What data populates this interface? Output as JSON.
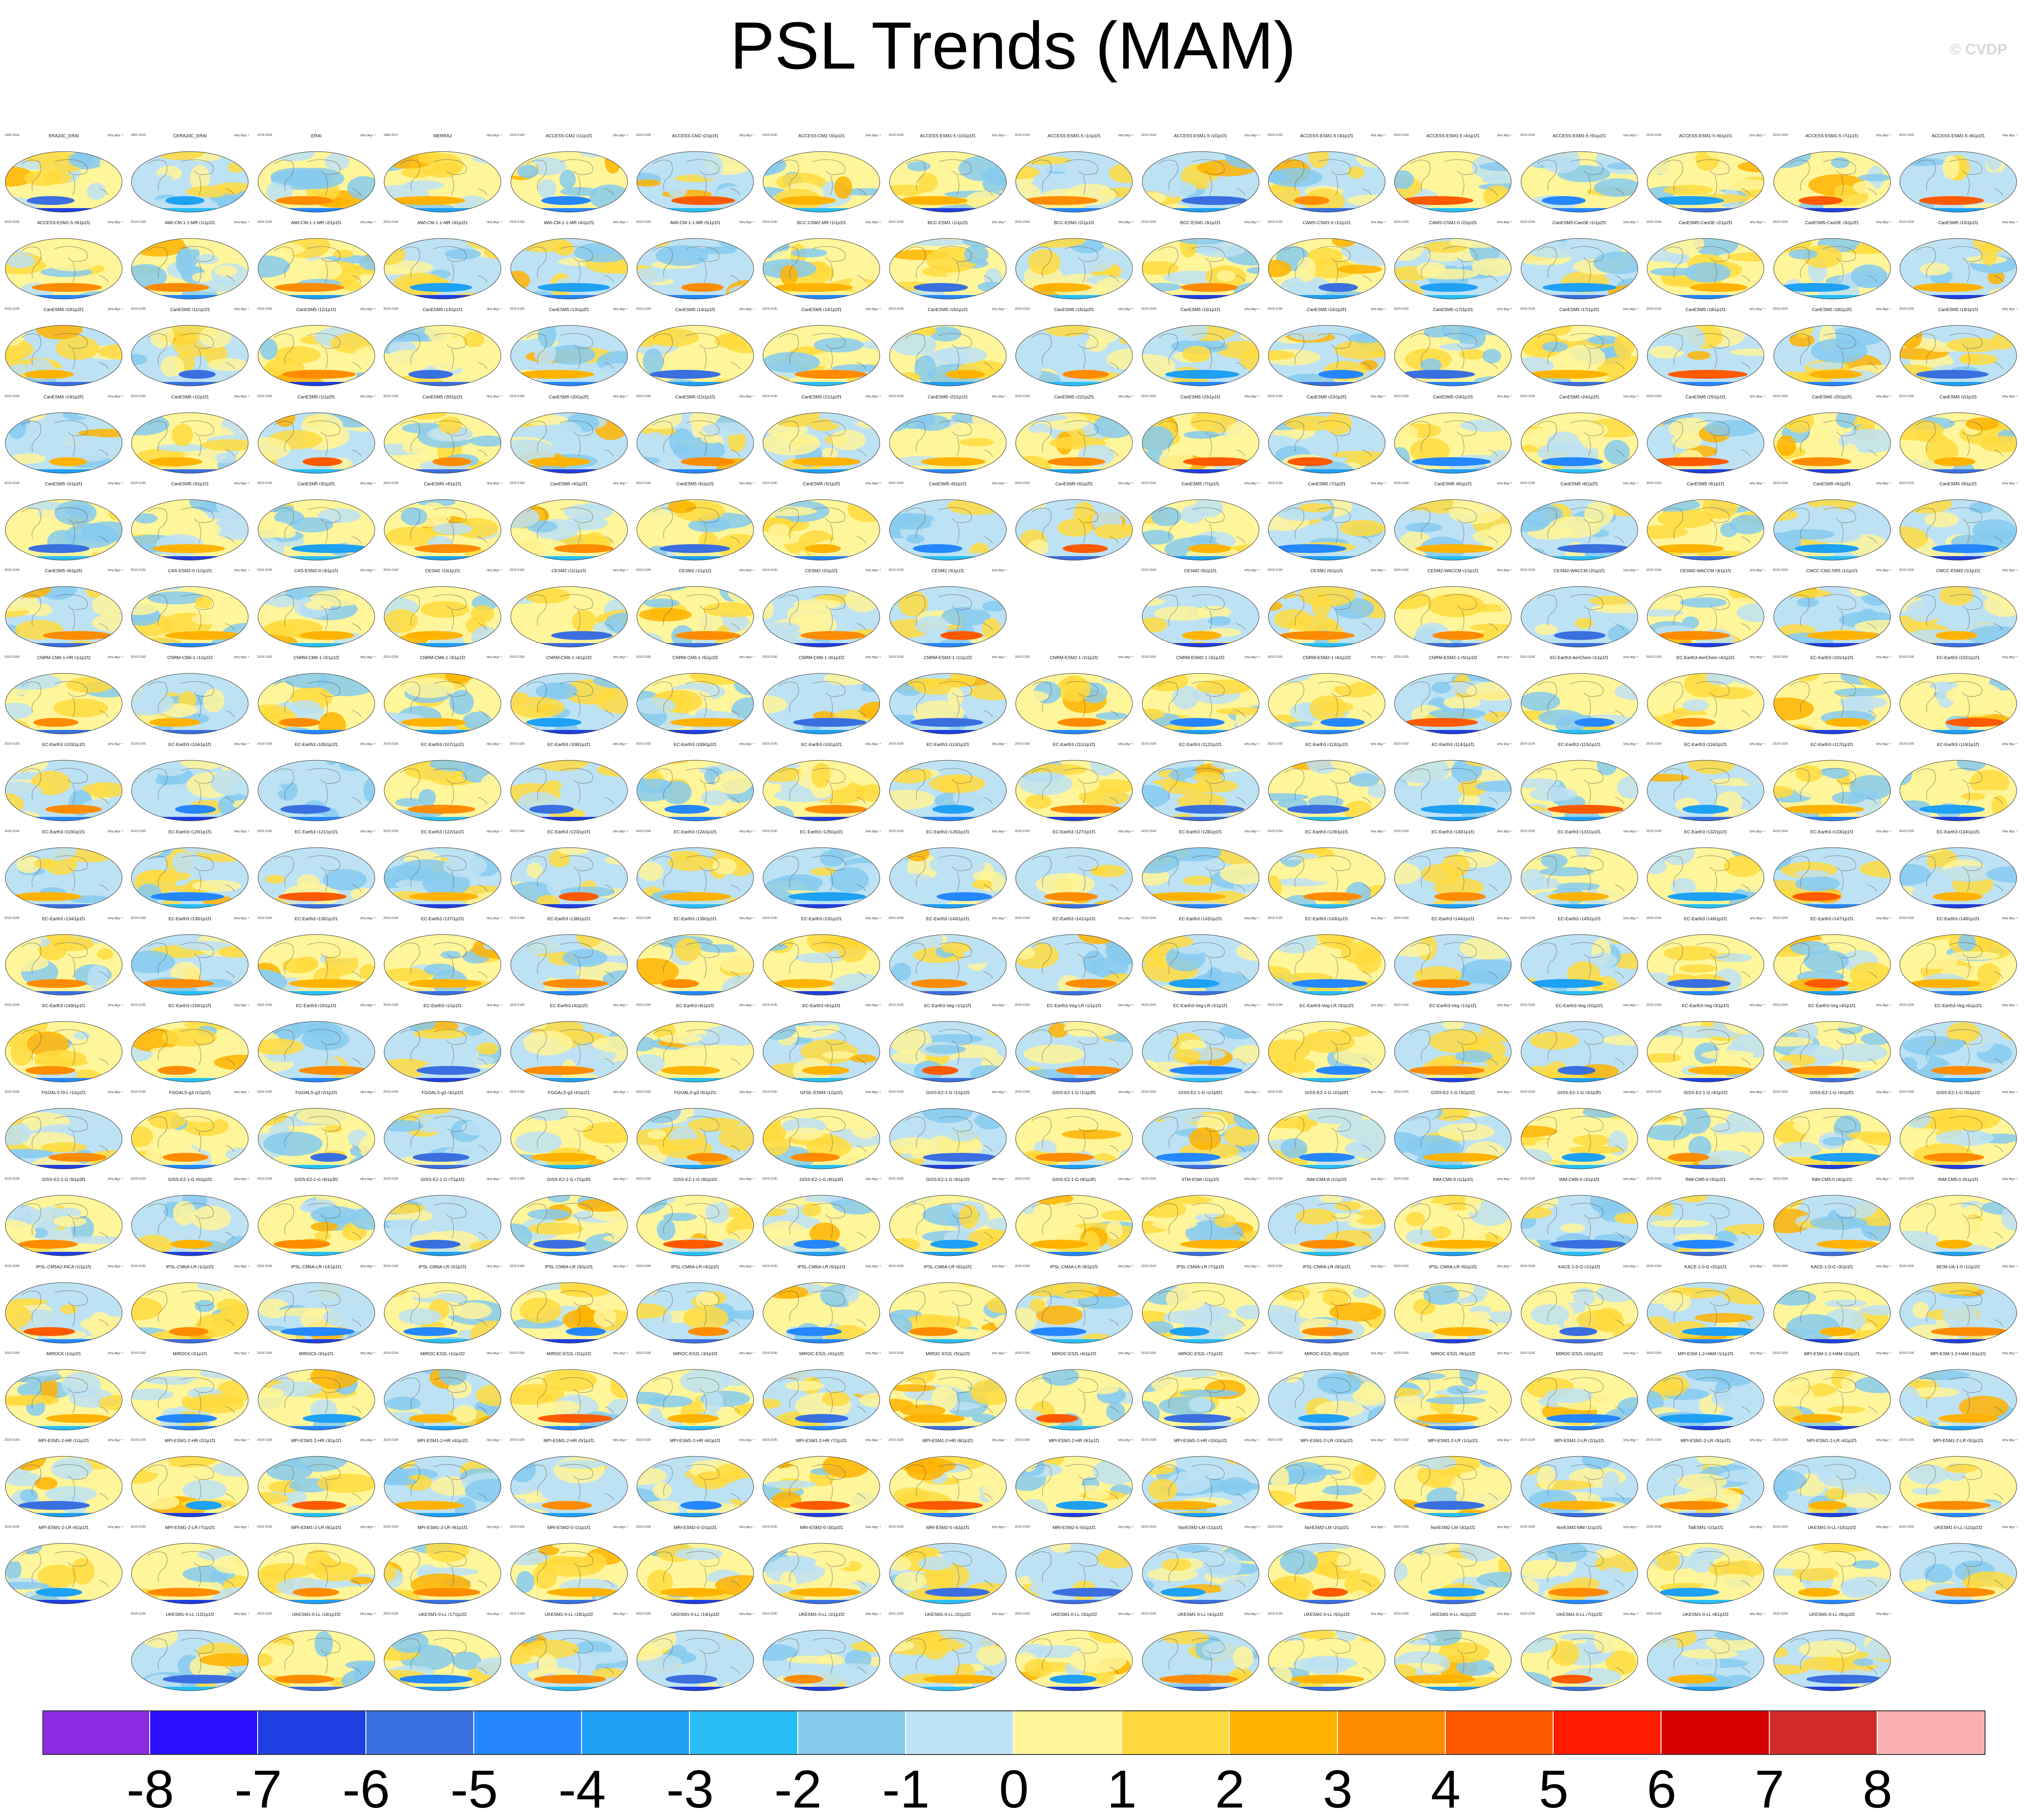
{
  "page": {
    "title": "PSL Trends (MAM)",
    "watermark": "© CVDP"
  },
  "panel_common": {
    "units_label": "hPa 96yr⁻¹",
    "default_years": "2015-2100"
  },
  "panels": [
    {
      "title": "ERA20C_ERAI",
      "years": "1900-2018"
    },
    {
      "title": "CERA20C_ERAI",
      "years": "1901-2018"
    },
    {
      "title": "ERAI",
      "years": "1979-2018"
    },
    {
      "title": "MERRA2",
      "years": "1980-2017"
    },
    {
      "title": "ACCESS-CM2 r1i1p1f1"
    },
    {
      "title": "ACCESS-CM2 r2i1p1f1"
    },
    {
      "title": "ACCESS-CM2 r3i1p1f1"
    },
    {
      "title": "ACCESS-ESM1-5 r10i1p1f1"
    },
    {
      "title": "ACCESS-ESM1-5 r1i1p1f1"
    },
    {
      "title": "ACCESS-ESM1-5 r2i1p1f1"
    },
    {
      "title": "ACCESS-ESM1-5 r3i1p1f1"
    },
    {
      "title": "ACCESS-ESM1-5 r4i1p1f1"
    },
    {
      "title": "ACCESS-ESM1-5 r5i1p1f1"
    },
    {
      "title": "ACCESS-ESM1-5 r6i1p1f1"
    },
    {
      "title": "ACCESS-ESM1-5 r7i1p1f1"
    },
    {
      "title": "ACCESS-ESM1-5 r8i1p1f1"
    },
    {
      "title": "ACCESS-ESM1-5 r9i1p1f1"
    },
    {
      "title": "AWI-CM-1-1-MR r1i1p1f1"
    },
    {
      "title": "AWI-CM-1-1-MR r2i1p1f1"
    },
    {
      "title": "AWI-CM-1-1-MR r3i1p1f1"
    },
    {
      "title": "AWI-CM-1-1-MR r4i1p1f1"
    },
    {
      "title": "AWI-CM-1-1-MR r5i1p1f1"
    },
    {
      "title": "BCC-CSM2-MR r1i1p1f1"
    },
    {
      "title": "BCC-ESM1 r1i1p1f1"
    },
    {
      "title": "BCC-ESM1 r2i1p1f1"
    },
    {
      "title": "BCC-ESM1 r3i1p1f1"
    },
    {
      "title": "CAMS-CSM1-0 r1i1p1f1"
    },
    {
      "title": "CAMS-CSM1-0 r2i1p1f1"
    },
    {
      "title": "CanESM5-CanOE r1i1p2f1"
    },
    {
      "title": "CanESM5-CanOE r2i1p2f1"
    },
    {
      "title": "CanESM5-CanOE r3i1p2f1"
    },
    {
      "title": "CanESM5 r10i1p1f1"
    },
    {
      "title": "CanESM5 r10i1p2f1"
    },
    {
      "title": "CanESM5 r11i1p1f1"
    },
    {
      "title": "CanESM5 r12i1p1f1"
    },
    {
      "title": "CanESM5 r13i1p1f1"
    },
    {
      "title": "CanESM5 r13i1p2f1"
    },
    {
      "title": "CanESM5 r14i1p1f1"
    },
    {
      "title": "CanESM5 r14i1p2f1"
    },
    {
      "title": "CanESM5 r15i1p1f1"
    },
    {
      "title": "CanESM5 r15i1p2f1"
    },
    {
      "title": "CanESM5 r16i1p1f1"
    },
    {
      "title": "CanESM5 r16i1p2f1"
    },
    {
      "title": "CanESM5 r17i1p1f1"
    },
    {
      "title": "CanESM5 r17i1p2f1"
    },
    {
      "title": "CanESM5 r18i1p1f1"
    },
    {
      "title": "CanESM5 r18i1p2f1"
    },
    {
      "title": "CanESM5 r19i1p1f1"
    },
    {
      "title": "CanESM5 r19i1p2f1"
    },
    {
      "title": "CanESM5 r1i1p1f1"
    },
    {
      "title": "CanESM5 r1i1p2f1"
    },
    {
      "title": "CanESM5 r20i1p1f1"
    },
    {
      "title": "CanESM5 r20i1p2f1"
    },
    {
      "title": "CanESM5 r21i1p1f1"
    },
    {
      "title": "CanESM5 r21i1p2f1"
    },
    {
      "title": "CanESM5 r22i1p1f1"
    },
    {
      "title": "CanESM5 r22i1p2f1"
    },
    {
      "title": "CanESM5 r23i1p1f1"
    },
    {
      "title": "CanESM5 r23i1p2f1"
    },
    {
      "title": "CanESM5 r24i1p1f1"
    },
    {
      "title": "CanESM5 r24i1p2f1"
    },
    {
      "title": "CanESM5 r25i1p1f1"
    },
    {
      "title": "CanESM5 r25i1p2f1"
    },
    {
      "title": "CanESM5 r2i1p1f1"
    },
    {
      "title": "CanESM5 r2i1p2f1"
    },
    {
      "title": "CanESM5 r3i1p1f1"
    },
    {
      "title": "CanESM5 r3i1p2f1"
    },
    {
      "title": "CanESM5 r4i1p1f1"
    },
    {
      "title": "CanESM5 r4i1p2f1"
    },
    {
      "title": "CanESM5 r5i1p1f1"
    },
    {
      "title": "CanESM5 r5i1p2f1"
    },
    {
      "title": "CanESM5 r6i1p1f1"
    },
    {
      "title": "CanESM5 r6i1p2f1"
    },
    {
      "title": "CanESM5 r7i1p1f1"
    },
    {
      "title": "CanESM5 r7i1p2f1"
    },
    {
      "title": "CanESM5 r8i1p1f1"
    },
    {
      "title": "CanESM5 r8i1p2f1"
    },
    {
      "title": "CanESM5 r9i1p1f1"
    },
    {
      "title": "CanESM5 r9i1p2f1"
    },
    {
      "title": "CanESM5 r9i1p1f1"
    },
    {
      "title": "CanESM5 r9i1p2f1"
    },
    {
      "title": "CAS-ESM2-0 r1i1p1f1"
    },
    {
      "title": "CAS-ESM2-0 r3i1p1f1"
    },
    {
      "title": "CESM2 r10i1p1f1"
    },
    {
      "title": "CESM2 r11i1p1f1"
    },
    {
      "title": "CESM2 r1i1p1f1"
    },
    {
      "title": "CESM2 r2i1p1f1"
    },
    {
      "title": "CESM2 r3i1p1f1"
    },
    {
      "title": "",
      "empty": true
    },
    {
      "title": "CESM2 r5i1p1f1"
    },
    {
      "title": "CESM2 r6i1p1f1"
    },
    {
      "title": "CESM2-WACCM r1i1p1f1"
    },
    {
      "title": "CESM2-WACCM r2i1p1f1"
    },
    {
      "title": "CESM2-WACCM r3i1p1f1"
    },
    {
      "title": "CMCC-CM2-SR5 r1i1p1f1"
    },
    {
      "title": "CMCC-ESM2 r1i1p1f1"
    },
    {
      "title": "CNRM-CM6-1-HR r1i1p1f2"
    },
    {
      "title": "CNRM-CM6-1 r1i1p1f2"
    },
    {
      "title": "CNRM-CM6-1 r2i1p1f2"
    },
    {
      "title": "CNRM-CM6-1 r3i1p1f2"
    },
    {
      "title": "CNRM-CM6-1 r4i1p1f2"
    },
    {
      "title": "CNRM-CM6-1 r5i1p1f2"
    },
    {
      "title": "CNRM-CM6-1 r6i1p1f2"
    },
    {
      "title": "CNRM-ESM2-1 r1i1p1f2"
    },
    {
      "title": "CNRM-ESM2-1 r2i1p1f2"
    },
    {
      "title": "CNRM-ESM2-1 r3i1p1f2"
    },
    {
      "title": "CNRM-ESM2-1 r4i1p1f2"
    },
    {
      "title": "CNRM-ESM2-1 r5i1p1f2"
    },
    {
      "title": "EC-Earth3-AerChem r1i1p1f1"
    },
    {
      "title": "EC-Earth3-AerChem r4i1p1f1"
    },
    {
      "title": "EC-Earth3 r101i1p1f1"
    },
    {
      "title": "EC-Earth3 r102i1p1f1"
    },
    {
      "title": "EC-Earth3 r103i1p1f1"
    },
    {
      "title": "EC-Earth3 r104i1p1f1"
    },
    {
      "title": "EC-Earth3 r105i1p1f1"
    },
    {
      "title": "EC-Earth3 r107i1p1f1"
    },
    {
      "title": "EC-Earth3 r108i1p1f1"
    },
    {
      "title": "EC-Earth3 r109i1p1f1"
    },
    {
      "title": "EC-Earth3 r10i1p1f1"
    },
    {
      "title": "EC-Earth3 r110i1p1f1"
    },
    {
      "title": "EC-Earth3 r111i1p1f1"
    },
    {
      "title": "EC-Earth3 r112i1p1f1"
    },
    {
      "title": "EC-Earth3 r113i1p1f1"
    },
    {
      "title": "EC-Earth3 r114i1p1f1"
    },
    {
      "title": "EC-Earth3 r115i1p1f1"
    },
    {
      "title": "EC-Earth3 r116i1p1f1"
    },
    {
      "title": "EC-Earth3 r117i1p1f1"
    },
    {
      "title": "EC-Earth3 r118i1p1f1"
    },
    {
      "title": "EC-Earth3 r119i1p1f1"
    },
    {
      "title": "EC-Earth3 r120i1p1f1"
    },
    {
      "title": "EC-Earth3 r121i1p1f1"
    },
    {
      "title": "EC-Earth3 r122i1p1f1"
    },
    {
      "title": "EC-Earth3 r123i1p1f1"
    },
    {
      "title": "EC-Earth3 r124i1p1f1"
    },
    {
      "title": "EC-Earth3 r125i1p1f1"
    },
    {
      "title": "EC-Earth3 r126i1p1f1"
    },
    {
      "title": "EC-Earth3 r127i1p1f1"
    },
    {
      "title": "EC-Earth3 r128i1p1f1"
    },
    {
      "title": "EC-Earth3 r129i1p1f1"
    },
    {
      "title": "EC-Earth3 r130i1p1f1"
    },
    {
      "title": "EC-Earth3 r131i1p1f1"
    },
    {
      "title": "EC-Earth3 r132i1p1f1"
    },
    {
      "title": "EC-Earth3 r133i1p1f1"
    },
    {
      "title": "EC-Earth3 r134i1p1f1"
    },
    {
      "title": "EC-Earth3 r134i1p1f1"
    },
    {
      "title": "EC-Earth3 r135i1p1f1"
    },
    {
      "title": "EC-Earth3 r136i1p1f1"
    },
    {
      "title": "EC-Earth3 r137i1p1f1"
    },
    {
      "title": "EC-Earth3 r138i1p1f1"
    },
    {
      "title": "EC-Earth3 r139i1p1f1"
    },
    {
      "title": "EC-Earth3 r13i1p1f1"
    },
    {
      "title": "EC-Earth3 r140i1p1f1"
    },
    {
      "title": "EC-Earth3 r141i1p1f1"
    },
    {
      "title": "EC-Earth3 r142i1p1f1"
    },
    {
      "title": "EC-Earth3 r143i1p1f1"
    },
    {
      "title": "EC-Earth3 r144i1p1f1"
    },
    {
      "title": "EC-Earth3 r145i1p1f1"
    },
    {
      "title": "EC-Earth3 r146i1p1f1"
    },
    {
      "title": "EC-Earth3 r147i1p1f1"
    },
    {
      "title": "EC-Earth3 r148i1p1f1"
    },
    {
      "title": "EC-Earth3 r149i1p1f1"
    },
    {
      "title": "EC-Earth3 r150i1p1f1"
    },
    {
      "title": "EC-Earth3 r15i1p1f1"
    },
    {
      "title": "EC-Earth3 r1i1p1f1"
    },
    {
      "title": "EC-Earth3 r4i1p1f1"
    },
    {
      "title": "EC-Earth3 r6i1p1f1"
    },
    {
      "title": "EC-Earth3 r9i1p1f1"
    },
    {
      "title": "EC-Earth3-Veg r1i1p1f1"
    },
    {
      "title": "EC-Earth3-Veg-LR r1i1p1f1"
    },
    {
      "title": "EC-Earth3-Veg-LR r2i1p1f1"
    },
    {
      "title": "EC-Earth3-Veg-LR r3i1p1f1"
    },
    {
      "title": "EC-Earth3-Veg r1i1p1f1"
    },
    {
      "title": "EC-Earth3-Veg r2i1p1f1"
    },
    {
      "title": "EC-Earth3-Veg r3i1p1f1"
    },
    {
      "title": "EC-Earth3-Veg r4i1p1f1"
    },
    {
      "title": "EC-Earth3-Veg r6i1p1f1"
    },
    {
      "title": "FGOALS-f3-L r1i1p1f1"
    },
    {
      "title": "FGOALS-g3 r1i1p1f1"
    },
    {
      "title": "FGOALS-g3 r2i1p1f1"
    },
    {
      "title": "FGOALS-g3 r3i1p1f1"
    },
    {
      "title": "FGOALS-g3 r4i1p1f1"
    },
    {
      "title": "FGOALS-g3 r5i1p1f1"
    },
    {
      "title": "GFDL-ESM4 r1i1p1f1"
    },
    {
      "title": "GISS-E2-1-G r1i1p1f2"
    },
    {
      "title": "GISS-E2-1-G r1i1p3f1"
    },
    {
      "title": "GISS-E2-1-G r1i1p5f1"
    },
    {
      "title": "GISS-E2-1-G r2i1p3f1"
    },
    {
      "title": "GISS-E2-1-G r3i1p1f2"
    },
    {
      "title": "GISS-E2-1-G r3i1p3f1"
    },
    {
      "title": "GISS-E2-1-G r4i1p1f2"
    },
    {
      "title": "GISS-E2-1-G r4i1p3f1"
    },
    {
      "title": "GISS-E2-1-G r5i1p1f2"
    },
    {
      "title": "GISS-E2-1-G r5i1p3f1"
    },
    {
      "title": "GISS-E2-1-G r6i1p1f2"
    },
    {
      "title": "GISS-E2-1-G r6i1p3f1"
    },
    {
      "title": "GISS-E2-1-G r7i1p1f2"
    },
    {
      "title": "GISS-E2-1-G r7i1p3f1"
    },
    {
      "title": "GISS-E2-1-G r8i1p1f2"
    },
    {
      "title": "GISS-E2-1-G r8i1p3f1"
    },
    {
      "title": "GISS-E2-1-G r9i1p1f2"
    },
    {
      "title": "GISS-E2-1-G r9i1p3f1"
    },
    {
      "title": "IITM-ESM r1i1p1f1"
    },
    {
      "title": "INM-CM4-8 r1i1p1f1"
    },
    {
      "title": "INM-CM5-0 r1i1p1f1"
    },
    {
      "title": "INM-CM5-0 r2i1p1f1"
    },
    {
      "title": "INM-CM5-0 r3i1p1f1"
    },
    {
      "title": "INM-CM5-0 r4i1p1f1"
    },
    {
      "title": "INM-CM5-0 r5i1p1f1"
    },
    {
      "title": "IPSL-CM5A2-INCA r1i1p1f1"
    },
    {
      "title": "IPSL-CM6A-LR r1i1p1f1"
    },
    {
      "title": "IPSL-CM6A-LR r14i1p1f1"
    },
    {
      "title": "IPSL-CM6A-LR r2i1p1f1"
    },
    {
      "title": "IPSL-CM6A-LR r3i1p1f1"
    },
    {
      "title": "IPSL-CM6A-LR r4i1p1f1"
    },
    {
      "title": "IPSL-CM6A-LR r5i1p1f1"
    },
    {
      "title": "IPSL-CM6A-LR r6i1p1f1"
    },
    {
      "title": "IPSL-CM6A-LR r8i1p1f1"
    },
    {
      "title": "IPSL-CM6A-LR r7i1p1f1"
    },
    {
      "title": "IPSL-CM6A-LR r9i1p1f1"
    },
    {
      "title": "IPSL-CM6A-LR r6i1p1f1"
    },
    {
      "title": "KACE-1-0-G r1i1p1f1"
    },
    {
      "title": "KACE-1-0-G r2i1p1f1"
    },
    {
      "title": "KACE-1-0-G r3i1p1f1"
    },
    {
      "title": "MCM-UA-1-0 r1i1p1f2"
    },
    {
      "title": "MIROC6 r1i1p1f1"
    },
    {
      "title": "MIROC6 r2i1p1f1"
    },
    {
      "title": "MIROC6 r3i1p1f1"
    },
    {
      "title": "MIROC-ES2L r1i1p1f2"
    },
    {
      "title": "MIROC-ES2L r2i1p1f2"
    },
    {
      "title": "MIROC-ES2L r3i1p1f2"
    },
    {
      "title": "MIROC-ES2L r4i1p1f2"
    },
    {
      "title": "MIROC-ES2L r5i1p1f2"
    },
    {
      "title": "MIROC-ES2L r6i1p1f2"
    },
    {
      "title": "MIROC-ES2L r7i1p1f2"
    },
    {
      "title": "MIROC-ES2L r8i1p1f2"
    },
    {
      "title": "MIROC-ES2L r9i1p1f2"
    },
    {
      "title": "MIROC-ES2L r10i1p1f2"
    },
    {
      "title": "MPI-ESM-1-2-HAM r1i1p1f1"
    },
    {
      "title": "MPI-ESM-1-2-HAM r2i1p1f1"
    },
    {
      "title": "MPI-ESM-1-2-HAM r3i1p1f1"
    },
    {
      "title": "MPI-ESM1-2-HR r1i1p1f1"
    },
    {
      "title": "MPI-ESM1-2-HR r2i1p1f1"
    },
    {
      "title": "MPI-ESM1-2-HR r3i1p1f1"
    },
    {
      "title": "MPI-ESM1-2-HR r4i1p1f1"
    },
    {
      "title": "MPI-ESM1-2-HR r5i1p1f1"
    },
    {
      "title": "MPI-ESM1-2-HR r6i1p1f1"
    },
    {
      "title": "MPI-ESM1-2-HR r7i1p1f1"
    },
    {
      "title": "MPI-ESM1-2-HR r8i1p1f1"
    },
    {
      "title": "MPI-ESM1-2-HR r9i1p1f1"
    },
    {
      "title": "MPI-ESM1-2-HR r10i1p1f1"
    },
    {
      "title": "MPI-ESM1-2-LR r10i1p1f1"
    },
    {
      "title": "MPI-ESM1-2-LR r1i1p1f1"
    },
    {
      "title": "MPI-ESM1-2-LR r2i1p1f1"
    },
    {
      "title": "MPI-ESM1-2-LR r3i1p1f1"
    },
    {
      "title": "MPI-ESM1-2-LR r4i1p1f1"
    },
    {
      "title": "MPI-ESM1-2-LR r5i1p1f1"
    },
    {
      "title": "MPI-ESM1-2-LR r6i1p1f1"
    },
    {
      "title": "MPI-ESM1-2-LR r7i1p1f1"
    },
    {
      "title": "MPI-ESM1-2-LR r8i1p1f1"
    },
    {
      "title": "MPI-ESM1-2-LR r9i1p1f1"
    },
    {
      "title": "MRI-ESM2-0 r1i1p1f1"
    },
    {
      "title": "MRI-ESM2-0 r2i1p1f1"
    },
    {
      "title": "MRI-ESM2-0 r3i1p1f1"
    },
    {
      "title": "MRI-ESM2-0 r4i1p1f1"
    },
    {
      "title": "MRI-ESM2-0 r5i1p1f1"
    },
    {
      "title": "NorESM2-LM r1i1p1f1"
    },
    {
      "title": "NorESM2-LM r2i1p1f1"
    },
    {
      "title": "NorESM2-LM r3i1p1f1"
    },
    {
      "title": "NorESM2-MM r1i1p1f1"
    },
    {
      "title": "TaiESM1 r1i1p1f1"
    },
    {
      "title": "UKESM1-0-LL r10i1p1f2"
    },
    {
      "title": "UKESM1-0-LL r11i1p1f2"
    },
    {
      "title": "UKESM1-0-LL r12i1p1f2"
    },
    {
      "title": "UKESM1-0-LL r16i1p1f2"
    },
    {
      "title": "UKESM1-0-LL r17i1p1f2"
    },
    {
      "title": "UKESM1-0-LL r18i1p1f2"
    },
    {
      "title": "UKESM1-0-LL r19i1p1f2"
    },
    {
      "title": "UKESM1-0-LL r1i1p1f2"
    },
    {
      "title": "UKESM1-0-LL r2i1p1f2"
    },
    {
      "title": "UKESM1-0-LL r3i1p1f2"
    },
    {
      "title": "UKESM1-0-LL r4i1p1f2"
    },
    {
      "title": "UKESM1-0-LL r5i1p1f2"
    },
    {
      "title": "UKESM1-0-LL r6i1p1f2"
    },
    {
      "title": "UKESM1-0-LL r7i1p1f2"
    },
    {
      "title": "UKESM1-0-LL r8i1p1f2"
    },
    {
      "title": "UKESM1-0-LL r9i1p1f2"
    }
  ],
  "colorbar": {
    "ticks": [
      "-8",
      "-7",
      "-6",
      "-5",
      "-4",
      "-3",
      "-2",
      "-1",
      "0",
      "1",
      "2",
      "3",
      "4",
      "5",
      "6",
      "7",
      "8"
    ],
    "colors": [
      "#8a2be2",
      "#2a0fff",
      "#1f3fe0",
      "#3a6fe0",
      "#2587ff",
      "#1ea0f5",
      "#28bef5",
      "#86caee",
      "#bde2f3",
      "#fff59a",
      "#ffda3e",
      "#ffb300",
      "#ff8c00",
      "#ff5a00",
      "#ff1a00",
      "#d60000",
      "#d02a2a",
      "#f8b0b0"
    ]
  },
  "chart_data": {
    "type": "heatmap",
    "title": "PSL Trends (MAM)",
    "units": "hPa 96yr⁻¹",
    "color_levels": [
      -8,
      -7,
      -6,
      -5,
      -4,
      -3,
      -2,
      -1,
      0,
      1,
      2,
      3,
      4,
      5,
      6,
      7,
      8
    ],
    "layout": "grid of global trend maps, 16 columns × 18 rows",
    "panel_count": 285
  }
}
